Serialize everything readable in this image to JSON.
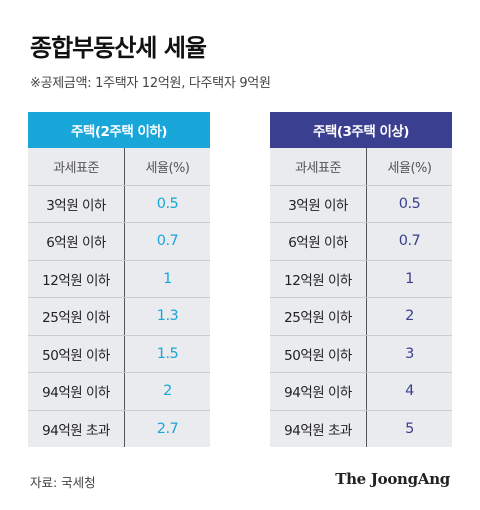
{
  "title": "종합부동산세 세율",
  "subtitle": "※공제금액: 1주택자 12억원, 다주택자 9억원",
  "tables": [
    {
      "header": "주택(2주택 이하)",
      "col1": "과세표준",
      "col2": "세율(%)",
      "rows": [
        {
          "bracket": "3억원 이하",
          "rate": "0.5"
        },
        {
          "bracket": "6억원 이하",
          "rate": "0.7"
        },
        {
          "bracket": "12억원 이하",
          "rate": "1"
        },
        {
          "bracket": "25억원 이하",
          "rate": "1.3"
        },
        {
          "bracket": "50억원 이하",
          "rate": "1.5"
        },
        {
          "bracket": "94억원 이하",
          "rate": "2"
        },
        {
          "bracket": "94억원 초과",
          "rate": "2.7"
        }
      ]
    },
    {
      "header": "주택(3주택 이상)",
      "col1": "과세표준",
      "col2": "세율(%)",
      "rows": [
        {
          "bracket": "3억원 이하",
          "rate": "0.5"
        },
        {
          "bracket": "6억원 이하",
          "rate": "0.7"
        },
        {
          "bracket": "12억원 이하",
          "rate": "1"
        },
        {
          "bracket": "25억원 이하",
          "rate": "2"
        },
        {
          "bracket": "50억원 이하",
          "rate": "3"
        },
        {
          "bracket": "94억원 이하",
          "rate": "4"
        },
        {
          "bracket": "94억원 초과",
          "rate": "5"
        }
      ]
    }
  ],
  "source": "자료: 국세청",
  "logo": "The JoongAng",
  "colors": {
    "left_accent": "#19a6d9",
    "right_accent": "#3a3f8f",
    "table_bg": "#e9ebee"
  }
}
